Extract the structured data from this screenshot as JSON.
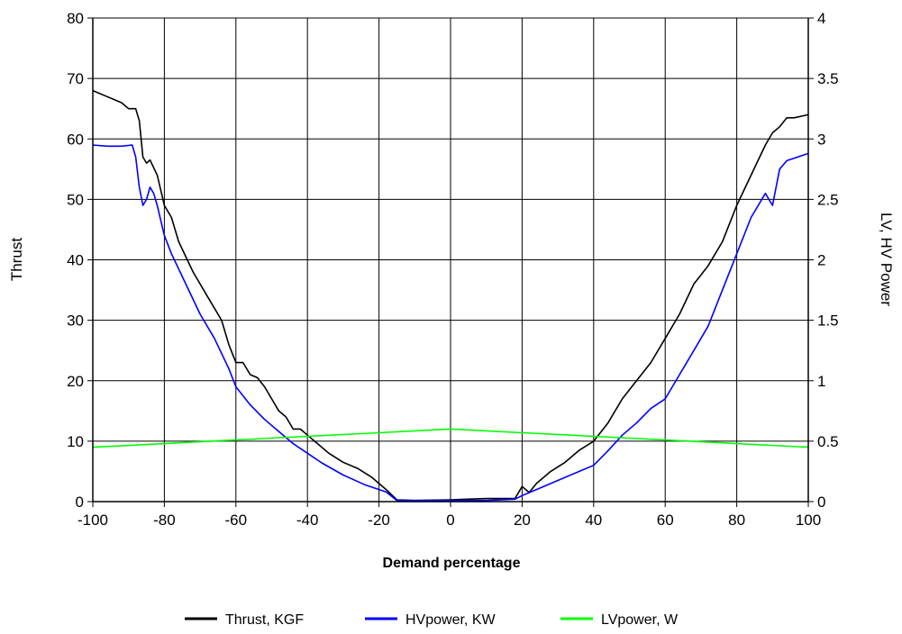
{
  "chart_data": {
    "type": "line",
    "title": "",
    "xlabel": "Demand percentage",
    "ylabel_left": "Thrust",
    "ylabel_right": "LV, HV Power",
    "xlim": [
      -100,
      100
    ],
    "ylim_left": [
      0,
      80
    ],
    "ylim_right": [
      0,
      4
    ],
    "x_ticks": [
      "-100",
      "-80",
      "-60",
      "-40",
      "-20",
      "0",
      "20",
      "40",
      "60",
      "80",
      "100"
    ],
    "y_left_ticks": [
      "0",
      "10",
      "20",
      "30",
      "40",
      "50",
      "60",
      "70",
      "80"
    ],
    "y_right_ticks": [
      "0",
      "0.5",
      "1",
      "1.5",
      "2",
      "2.5",
      "3",
      "3.5",
      "4"
    ],
    "grid": true,
    "legend_position": "bottom-center",
    "series": [
      {
        "name": "Thrust, KGF",
        "axis": "left",
        "color": "#000000",
        "points": [
          [
            -100,
            68
          ],
          [
            -96,
            67
          ],
          [
            -92,
            66
          ],
          [
            -90,
            65
          ],
          [
            -88,
            65
          ],
          [
            -87,
            63
          ],
          [
            -86,
            57
          ],
          [
            -85,
            56
          ],
          [
            -84,
            56.5
          ],
          [
            -82,
            54
          ],
          [
            -80,
            49
          ],
          [
            -78,
            47
          ],
          [
            -76,
            43
          ],
          [
            -72,
            38
          ],
          [
            -68,
            34
          ],
          [
            -64,
            30
          ],
          [
            -62,
            26
          ],
          [
            -60,
            23
          ],
          [
            -58,
            23
          ],
          [
            -56,
            21
          ],
          [
            -54,
            20.5
          ],
          [
            -52,
            19
          ],
          [
            -50,
            17
          ],
          [
            -48,
            15
          ],
          [
            -46,
            14
          ],
          [
            -44,
            12
          ],
          [
            -42,
            12
          ],
          [
            -40,
            11
          ],
          [
            -38,
            10
          ],
          [
            -34,
            8
          ],
          [
            -30,
            6.5
          ],
          [
            -26,
            5.5
          ],
          [
            -22,
            4
          ],
          [
            -18,
            2
          ],
          [
            -15,
            0.3
          ],
          [
            -10,
            0.2
          ],
          [
            0,
            0.3
          ],
          [
            10,
            0.5
          ],
          [
            18,
            0.5
          ],
          [
            20,
            2.5
          ],
          [
            22,
            1.5
          ],
          [
            24,
            3
          ],
          [
            28,
            5
          ],
          [
            32,
            6.5
          ],
          [
            36,
            8.5
          ],
          [
            40,
            10
          ],
          [
            44,
            13
          ],
          [
            48,
            17
          ],
          [
            52,
            20
          ],
          [
            56,
            23
          ],
          [
            60,
            27
          ],
          [
            64,
            31
          ],
          [
            68,
            36
          ],
          [
            72,
            39
          ],
          [
            76,
            43
          ],
          [
            80,
            49
          ],
          [
            84,
            54
          ],
          [
            88,
            59
          ],
          [
            90,
            61
          ],
          [
            92,
            62
          ],
          [
            94,
            63.5
          ],
          [
            96,
            63.5
          ],
          [
            100,
            64
          ]
        ]
      },
      {
        "name": "HVpower, KW",
        "axis": "right",
        "color": "#0000ff",
        "points": [
          [
            -100,
            2.95
          ],
          [
            -96,
            2.94
          ],
          [
            -92,
            2.94
          ],
          [
            -89,
            2.95
          ],
          [
            -88,
            2.85
          ],
          [
            -87,
            2.6
          ],
          [
            -86,
            2.45
          ],
          [
            -85,
            2.5
          ],
          [
            -84,
            2.6
          ],
          [
            -83,
            2.55
          ],
          [
            -82,
            2.45
          ],
          [
            -80,
            2.2
          ],
          [
            -78,
            2.05
          ],
          [
            -74,
            1.8
          ],
          [
            -70,
            1.55
          ],
          [
            -66,
            1.35
          ],
          [
            -62,
            1.1
          ],
          [
            -60,
            0.95
          ],
          [
            -56,
            0.8
          ],
          [
            -52,
            0.68
          ],
          [
            -48,
            0.58
          ],
          [
            -44,
            0.48
          ],
          [
            -40,
            0.4
          ],
          [
            -36,
            0.32
          ],
          [
            -30,
            0.22
          ],
          [
            -24,
            0.14
          ],
          [
            -18,
            0.08
          ],
          [
            -15,
            0.01
          ],
          [
            -10,
            0.01
          ],
          [
            0,
            0.01
          ],
          [
            10,
            0.01
          ],
          [
            18,
            0.02
          ],
          [
            20,
            0.05
          ],
          [
            24,
            0.1
          ],
          [
            28,
            0.15
          ],
          [
            32,
            0.2
          ],
          [
            36,
            0.25
          ],
          [
            40,
            0.3
          ],
          [
            44,
            0.42
          ],
          [
            48,
            0.55
          ],
          [
            52,
            0.65
          ],
          [
            56,
            0.77
          ],
          [
            60,
            0.85
          ],
          [
            64,
            1.05
          ],
          [
            68,
            1.25
          ],
          [
            72,
            1.45
          ],
          [
            76,
            1.75
          ],
          [
            80,
            2.05
          ],
          [
            84,
            2.35
          ],
          [
            88,
            2.55
          ],
          [
            89,
            2.5
          ],
          [
            90,
            2.45
          ],
          [
            92,
            2.75
          ],
          [
            94,
            2.82
          ],
          [
            96,
            2.84
          ],
          [
            100,
            2.88
          ]
        ]
      },
      {
        "name": "LVpower, W",
        "axis": "right",
        "color": "#00ff00",
        "points": [
          [
            -100,
            0.45
          ],
          [
            -80,
            0.48
          ],
          [
            -60,
            0.51
          ],
          [
            -40,
            0.54
          ],
          [
            -20,
            0.57
          ],
          [
            0,
            0.6
          ],
          [
            20,
            0.57
          ],
          [
            40,
            0.54
          ],
          [
            60,
            0.51
          ],
          [
            80,
            0.48
          ],
          [
            100,
            0.45
          ]
        ]
      }
    ]
  }
}
